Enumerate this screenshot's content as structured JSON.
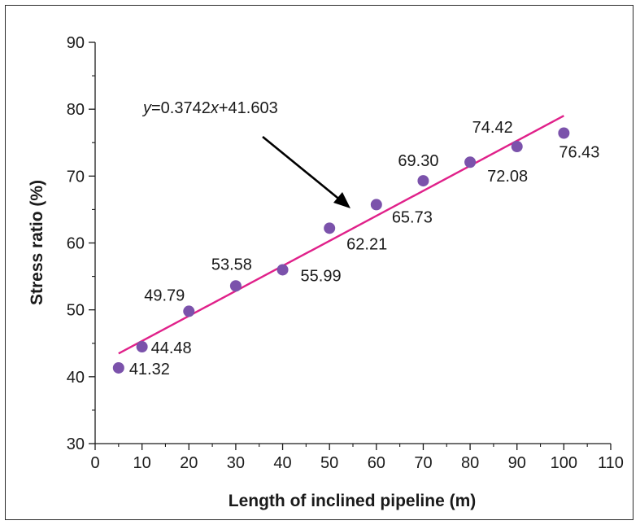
{
  "chart_data": {
    "type": "scatter",
    "xlabel": "Length of inclined pipeline (m)",
    "ylabel": "Stress ratio (%)",
    "xlim": [
      0,
      110
    ],
    "ylim": [
      30,
      90
    ],
    "xticks": [
      0,
      10,
      20,
      30,
      40,
      50,
      60,
      70,
      80,
      90,
      100,
      110
    ],
    "yticks": [
      30,
      40,
      50,
      60,
      70,
      80,
      90
    ],
    "grid": false,
    "points": [
      {
        "x": 5,
        "y": 41.32,
        "label": "41.32"
      },
      {
        "x": 10,
        "y": 44.48,
        "label": "44.48"
      },
      {
        "x": 20,
        "y": 49.79,
        "label": "49.79"
      },
      {
        "x": 30,
        "y": 53.58,
        "label": "53.58"
      },
      {
        "x": 40,
        "y": 55.99,
        "label": "55.99"
      },
      {
        "x": 50,
        "y": 62.21,
        "label": "62.21"
      },
      {
        "x": 60,
        "y": 65.73,
        "label": "65.73"
      },
      {
        "x": 70,
        "y": 69.3,
        "label": "69.30"
      },
      {
        "x": 80,
        "y": 72.08,
        "label": "72.08"
      },
      {
        "x": 90,
        "y": 74.42,
        "label": "74.42"
      },
      {
        "x": 100,
        "y": 76.43,
        "label": "76.43"
      }
    ],
    "fit": {
      "slope": 0.3742,
      "intercept": 41.603,
      "x_range": [
        5,
        100
      ],
      "equation": {
        "y_var": "y",
        "mid": "=0.3742",
        "x_var": "x",
        "tail": "+41.603"
      }
    },
    "colors": {
      "point": "#7b52ab",
      "fit_line": "#e0218a",
      "axis": "#1a1a1a",
      "arrow": "#000000"
    }
  }
}
